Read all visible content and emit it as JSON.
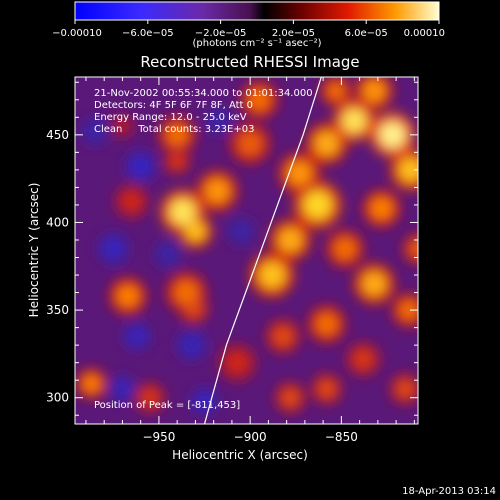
{
  "chart_data": {
    "type": "heatmap",
    "title": "Reconstructed RHESSI Image",
    "xlabel": "Heliocentric X (arcsec)",
    "ylabel": "Heliocentric Y (arcsec)",
    "xlim": [
      -996,
      -808
    ],
    "ylim": [
      285,
      483
    ],
    "x_ticks": [
      -950,
      -900,
      -850
    ],
    "x_tick_labels": [
      "−950",
      "−900",
      "−850"
    ],
    "y_ticks": [
      300,
      350,
      400,
      450
    ],
    "y_tick_labels": [
      "300",
      "350",
      "400",
      "450"
    ],
    "colorbar": {
      "range": [
        -0.0001,
        0.0001
      ],
      "tick_labels": [
        "−0.00010",
        "−6.0e−05",
        "−2.0e−05",
        "2.0e−05",
        "6.0e−05",
        "0.00010"
      ],
      "unit_label": "(photons cm⁻² s⁻¹ asec⁻²)"
    },
    "annotations": {
      "time_range": "21-Nov-2002 00:55:34.000 to 01:01:34.000",
      "detectors": "Detectors: 4F 5F 6F 7F 8F, Att 0",
      "energy_range": "Energy Range: 12.0 - 25.0 keV",
      "clean_total": "Clean     Total counts: 3.23E+03",
      "peak": "Position of Peak = [-811,453]"
    },
    "limb_curve": [
      {
        "x": -925,
        "y": 285
      },
      {
        "x": -913,
        "y": 330
      },
      {
        "x": -899,
        "y": 370
      },
      {
        "x": -885,
        "y": 410
      },
      {
        "x": -871,
        "y": 450
      },
      {
        "x": -861,
        "y": 483
      }
    ],
    "peak": {
      "x": -811,
      "y": 453
    },
    "blobs": [
      {
        "x": -937,
        "y": 406,
        "v": 0.9,
        "r": 13
      },
      {
        "x": -930,
        "y": 395,
        "v": 0.8,
        "r": 10
      },
      {
        "x": -918,
        "y": 418,
        "v": 0.7,
        "r": 12
      },
      {
        "x": -935,
        "y": 360,
        "v": 0.6,
        "r": 12
      },
      {
        "x": -931,
        "y": 351,
        "v": 0.5,
        "r": 9
      },
      {
        "x": -967,
        "y": 358,
        "v": 0.65,
        "r": 11
      },
      {
        "x": -940,
        "y": 450,
        "v": 0.6,
        "r": 11
      },
      {
        "x": -940,
        "y": 435,
        "v": 0.45,
        "r": 8
      },
      {
        "x": -970,
        "y": 455,
        "v": 0.3,
        "r": 7
      },
      {
        "x": -965,
        "y": 412,
        "v": 0.4,
        "r": 10
      },
      {
        "x": -987,
        "y": 308,
        "v": 0.65,
        "r": 9
      },
      {
        "x": -955,
        "y": 300,
        "v": 0.45,
        "r": 9
      },
      {
        "x": -907,
        "y": 320,
        "v": 0.4,
        "r": 11
      },
      {
        "x": -888,
        "y": 370,
        "v": 0.8,
        "r": 13
      },
      {
        "x": -878,
        "y": 390,
        "v": 0.75,
        "r": 12
      },
      {
        "x": -863,
        "y": 410,
        "v": 0.85,
        "r": 14
      },
      {
        "x": -873,
        "y": 428,
        "v": 0.7,
        "r": 12
      },
      {
        "x": -858,
        "y": 445,
        "v": 0.75,
        "r": 12
      },
      {
        "x": -843,
        "y": 458,
        "v": 0.9,
        "r": 12
      },
      {
        "x": -822,
        "y": 450,
        "v": 0.95,
        "r": 13
      },
      {
        "x": -812,
        "y": 430,
        "v": 0.8,
        "r": 12
      },
      {
        "x": -832,
        "y": 475,
        "v": 0.7,
        "r": 11
      },
      {
        "x": -853,
        "y": 475,
        "v": 0.6,
        "r": 9
      },
      {
        "x": -828,
        "y": 408,
        "v": 0.65,
        "r": 11
      },
      {
        "x": -848,
        "y": 385,
        "v": 0.6,
        "r": 11
      },
      {
        "x": -832,
        "y": 365,
        "v": 0.75,
        "r": 12
      },
      {
        "x": -813,
        "y": 350,
        "v": 0.6,
        "r": 10
      },
      {
        "x": -858,
        "y": 342,
        "v": 0.6,
        "r": 11
      },
      {
        "x": -882,
        "y": 335,
        "v": 0.5,
        "r": 10
      },
      {
        "x": -838,
        "y": 322,
        "v": 0.45,
        "r": 10
      },
      {
        "x": -858,
        "y": 305,
        "v": 0.5,
        "r": 9
      },
      {
        "x": -878,
        "y": 300,
        "v": 0.5,
        "r": 9
      },
      {
        "x": -815,
        "y": 305,
        "v": 0.5,
        "r": 9
      },
      {
        "x": -900,
        "y": 445,
        "v": 0.55,
        "r": 12
      },
      {
        "x": -895,
        "y": 470,
        "v": 0.6,
        "r": 11
      },
      {
        "x": -808,
        "y": 385,
        "v": 0.55,
        "r": 9
      },
      {
        "x": -960,
        "y": 432,
        "v": -0.55,
        "r": 9
      },
      {
        "x": -975,
        "y": 385,
        "v": -0.5,
        "r": 9
      },
      {
        "x": -945,
        "y": 382,
        "v": -0.3,
        "r": 8
      },
      {
        "x": -932,
        "y": 330,
        "v": -0.45,
        "r": 9
      },
      {
        "x": -962,
        "y": 335,
        "v": -0.5,
        "r": 8
      },
      {
        "x": -970,
        "y": 305,
        "v": -0.45,
        "r": 8
      },
      {
        "x": -925,
        "y": 298,
        "v": -0.5,
        "r": 8
      },
      {
        "x": -917,
        "y": 458,
        "v": -0.3,
        "r": 8
      },
      {
        "x": -905,
        "y": 395,
        "v": -0.3,
        "r": 8
      },
      {
        "x": -985,
        "y": 452,
        "v": -0.35,
        "r": 8
      }
    ]
  },
  "footer": {
    "timestamp": "18-Apr-2013 03:14"
  }
}
